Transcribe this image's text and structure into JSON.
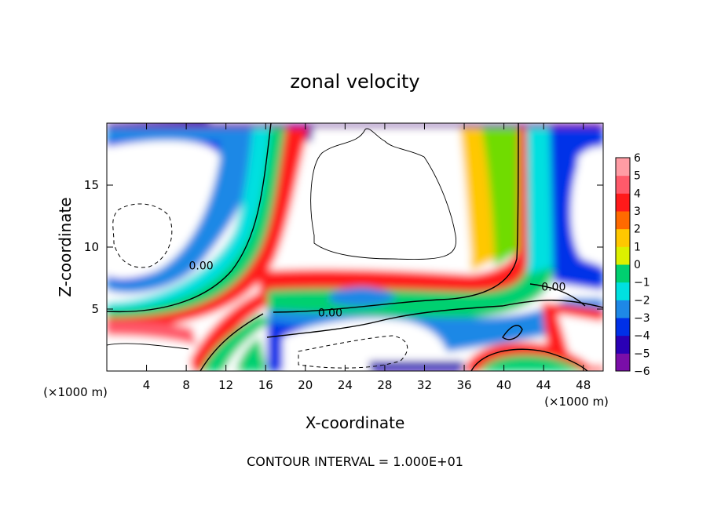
{
  "chart_data": {
    "type": "heatmap",
    "title": "zonal velocity",
    "xlabel": "X-coordinate",
    "ylabel": "Z-coordinate",
    "x_unit": "(×1000 m)",
    "x_ticks": [
      4,
      8,
      12,
      16,
      20,
      24,
      28,
      32,
      36,
      40,
      44,
      48
    ],
    "y_ticks": [
      5,
      10,
      15
    ],
    "xlim": [
      0,
      50
    ],
    "ylim": [
      0,
      20
    ],
    "contour_labels": [
      {
        "text": "0.00",
        "x": 9.5,
        "y": 8.2
      },
      {
        "text": "0.00",
        "x": 22.5,
        "y": 4.4
      },
      {
        "text": "0.00",
        "x": 45,
        "y": 6.5
      }
    ],
    "colorbar": {
      "ticks": [
        "6",
        "5",
        "4",
        "3",
        "2",
        "1",
        "0",
        "−1",
        "−2",
        "−3",
        "−4",
        "−5",
        "−6"
      ],
      "range": [
        -6,
        6
      ]
    },
    "footnote": "CONTOUR INTERVAL = 1.000E+01",
    "palette": [
      "#7a0ea8",
      "#2a00b5",
      "#0030e8",
      "#1e88e6",
      "#00e0e0",
      "#00d070",
      "#6fdc00",
      "#dcf000",
      "#ffc800",
      "#ff6a00",
      "#ff1a1a",
      "#ff5a6a",
      "#ff9ca4"
    ]
  }
}
